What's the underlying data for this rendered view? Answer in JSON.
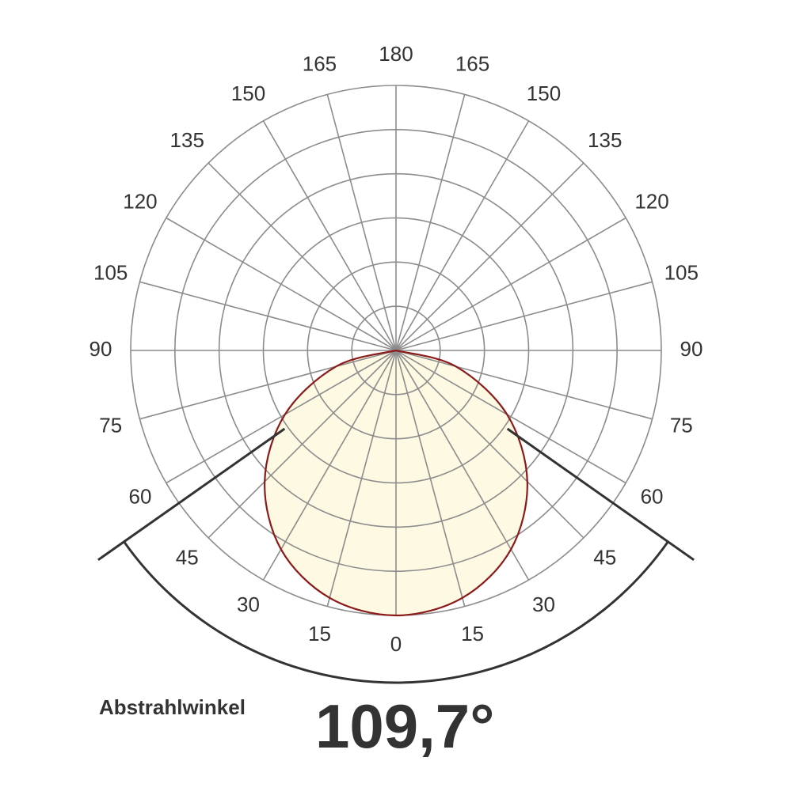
{
  "chart_data": {
    "type": "polar",
    "thetaticks": [
      0,
      15,
      30,
      45,
      60,
      75,
      90,
      105,
      120,
      135,
      150,
      165,
      180
    ],
    "rlim": [
      0,
      6
    ],
    "rticks": [
      1,
      2,
      3,
      4,
      5,
      6
    ],
    "theta": [
      -90,
      -75,
      -60,
      -45,
      -30,
      -15,
      0,
      15,
      30,
      45,
      60,
      75,
      90
    ],
    "series": [
      {
        "color": "#8b1a1a",
        "fill": "#fdf9e3",
        "values": [
          0,
          1.4,
          2.9,
          4.2,
          5.2,
          5.8,
          6.0,
          5.8,
          5.2,
          4.2,
          2.9,
          1.4,
          0
        ]
      }
    ],
    "beam_label": "Abstrahlwinkel",
    "beam_angle": {
      "value": 109.7,
      "label": "109,7°"
    }
  }
}
